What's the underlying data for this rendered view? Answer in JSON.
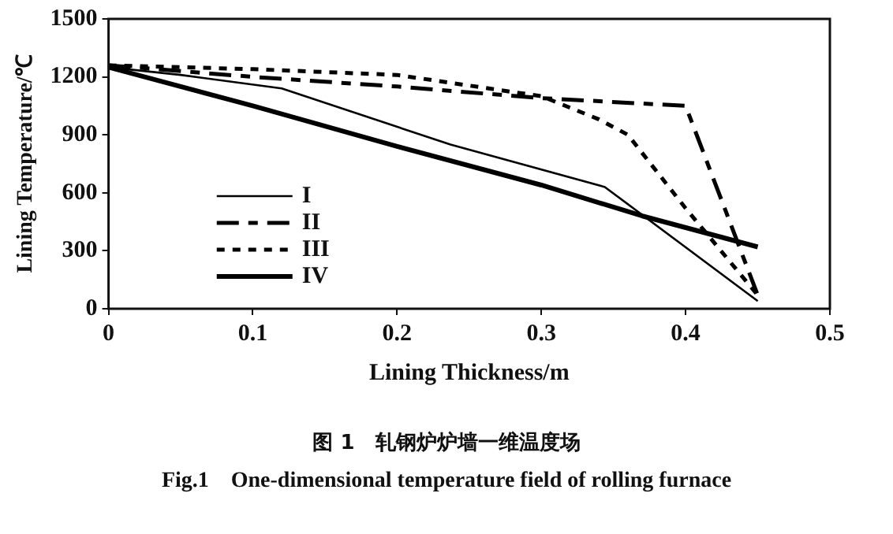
{
  "chart_data": {
    "type": "line",
    "title": "图 1　轧钢炉炉墙一维温度场",
    "subtitle": "Fig.1　One-dimensional temperature field of rolling furnace",
    "xlabel": "Lining Thickness/m",
    "ylabel": "Lining Temperature/℃",
    "xlim": [
      0,
      0.5
    ],
    "xticks": [
      0,
      0.1,
      0.2,
      0.3,
      0.4,
      0.5
    ],
    "ylim": [
      0,
      1500
    ],
    "yticks": [
      0,
      300,
      600,
      900,
      1200,
      1500
    ],
    "grid": false,
    "legend": "bottom left",
    "marker": "none",
    "series": [
      {
        "name": "I",
        "color": "#000000",
        "line_style": "solid",
        "x": [
          0,
          0.05,
          0.12,
          0.237,
          0.344,
          0.45
        ],
        "values": [
          1250,
          1210,
          1140,
          850,
          630,
          40
        ]
      },
      {
        "name": "II",
        "color": "#000000",
        "line_style": "dashed",
        "x": [
          0,
          0.1,
          0.2,
          0.3,
          0.4,
          0.45
        ],
        "values": [
          1260,
          1200,
          1150,
          1090,
          1050,
          70
        ]
      },
      {
        "name": "III",
        "color": "#000000",
        "line_style": "dotted",
        "x": [
          0,
          0.1,
          0.2,
          0.3,
          0.34,
          0.36,
          0.4,
          0.45
        ],
        "values": [
          1260,
          1240,
          1210,
          1100,
          980,
          900,
          520,
          70
        ]
      },
      {
        "name": "IV",
        "color": "#000000",
        "line_style": "solid",
        "x": [
          0,
          0.1,
          0.2,
          0.3,
          0.37,
          0.45
        ],
        "values": [
          1250,
          1050,
          840,
          640,
          480,
          320
        ]
      }
    ]
  }
}
